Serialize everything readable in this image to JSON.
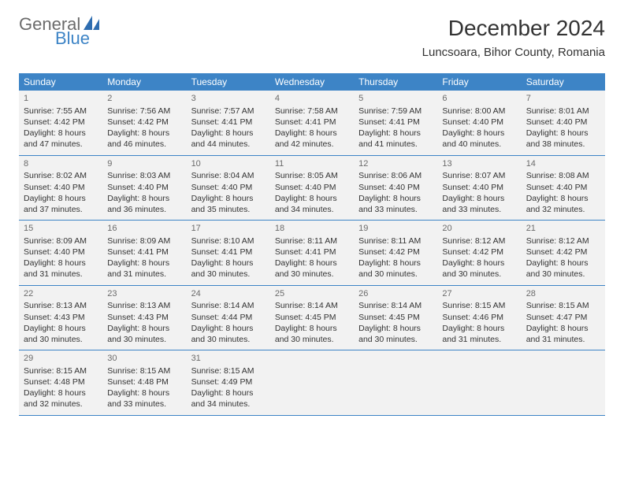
{
  "logo": {
    "text1": "General",
    "text2": "Blue",
    "icon_color": "#2e6db0"
  },
  "title": "December 2024",
  "location": "Luncsoara, Bihor County, Romania",
  "header_bg": "#3d84c6",
  "days": [
    "Sunday",
    "Monday",
    "Tuesday",
    "Wednesday",
    "Thursday",
    "Friday",
    "Saturday"
  ],
  "cells": [
    [
      {
        "n": "1",
        "sr": "Sunrise: 7:55 AM",
        "ss": "Sunset: 4:42 PM",
        "d1": "Daylight: 8 hours",
        "d2": "and 47 minutes."
      },
      {
        "n": "2",
        "sr": "Sunrise: 7:56 AM",
        "ss": "Sunset: 4:42 PM",
        "d1": "Daylight: 8 hours",
        "d2": "and 46 minutes."
      },
      {
        "n": "3",
        "sr": "Sunrise: 7:57 AM",
        "ss": "Sunset: 4:41 PM",
        "d1": "Daylight: 8 hours",
        "d2": "and 44 minutes."
      },
      {
        "n": "4",
        "sr": "Sunrise: 7:58 AM",
        "ss": "Sunset: 4:41 PM",
        "d1": "Daylight: 8 hours",
        "d2": "and 42 minutes."
      },
      {
        "n": "5",
        "sr": "Sunrise: 7:59 AM",
        "ss": "Sunset: 4:41 PM",
        "d1": "Daylight: 8 hours",
        "d2": "and 41 minutes."
      },
      {
        "n": "6",
        "sr": "Sunrise: 8:00 AM",
        "ss": "Sunset: 4:40 PM",
        "d1": "Daylight: 8 hours",
        "d2": "and 40 minutes."
      },
      {
        "n": "7",
        "sr": "Sunrise: 8:01 AM",
        "ss": "Sunset: 4:40 PM",
        "d1": "Daylight: 8 hours",
        "d2": "and 38 minutes."
      }
    ],
    [
      {
        "n": "8",
        "sr": "Sunrise: 8:02 AM",
        "ss": "Sunset: 4:40 PM",
        "d1": "Daylight: 8 hours",
        "d2": "and 37 minutes."
      },
      {
        "n": "9",
        "sr": "Sunrise: 8:03 AM",
        "ss": "Sunset: 4:40 PM",
        "d1": "Daylight: 8 hours",
        "d2": "and 36 minutes."
      },
      {
        "n": "10",
        "sr": "Sunrise: 8:04 AM",
        "ss": "Sunset: 4:40 PM",
        "d1": "Daylight: 8 hours",
        "d2": "and 35 minutes."
      },
      {
        "n": "11",
        "sr": "Sunrise: 8:05 AM",
        "ss": "Sunset: 4:40 PM",
        "d1": "Daylight: 8 hours",
        "d2": "and 34 minutes."
      },
      {
        "n": "12",
        "sr": "Sunrise: 8:06 AM",
        "ss": "Sunset: 4:40 PM",
        "d1": "Daylight: 8 hours",
        "d2": "and 33 minutes."
      },
      {
        "n": "13",
        "sr": "Sunrise: 8:07 AM",
        "ss": "Sunset: 4:40 PM",
        "d1": "Daylight: 8 hours",
        "d2": "and 33 minutes."
      },
      {
        "n": "14",
        "sr": "Sunrise: 8:08 AM",
        "ss": "Sunset: 4:40 PM",
        "d1": "Daylight: 8 hours",
        "d2": "and 32 minutes."
      }
    ],
    [
      {
        "n": "15",
        "sr": "Sunrise: 8:09 AM",
        "ss": "Sunset: 4:40 PM",
        "d1": "Daylight: 8 hours",
        "d2": "and 31 minutes."
      },
      {
        "n": "16",
        "sr": "Sunrise: 8:09 AM",
        "ss": "Sunset: 4:41 PM",
        "d1": "Daylight: 8 hours",
        "d2": "and 31 minutes."
      },
      {
        "n": "17",
        "sr": "Sunrise: 8:10 AM",
        "ss": "Sunset: 4:41 PM",
        "d1": "Daylight: 8 hours",
        "d2": "and 30 minutes."
      },
      {
        "n": "18",
        "sr": "Sunrise: 8:11 AM",
        "ss": "Sunset: 4:41 PM",
        "d1": "Daylight: 8 hours",
        "d2": "and 30 minutes."
      },
      {
        "n": "19",
        "sr": "Sunrise: 8:11 AM",
        "ss": "Sunset: 4:42 PM",
        "d1": "Daylight: 8 hours",
        "d2": "and 30 minutes."
      },
      {
        "n": "20",
        "sr": "Sunrise: 8:12 AM",
        "ss": "Sunset: 4:42 PM",
        "d1": "Daylight: 8 hours",
        "d2": "and 30 minutes."
      },
      {
        "n": "21",
        "sr": "Sunrise: 8:12 AM",
        "ss": "Sunset: 4:42 PM",
        "d1": "Daylight: 8 hours",
        "d2": "and 30 minutes."
      }
    ],
    [
      {
        "n": "22",
        "sr": "Sunrise: 8:13 AM",
        "ss": "Sunset: 4:43 PM",
        "d1": "Daylight: 8 hours",
        "d2": "and 30 minutes."
      },
      {
        "n": "23",
        "sr": "Sunrise: 8:13 AM",
        "ss": "Sunset: 4:43 PM",
        "d1": "Daylight: 8 hours",
        "d2": "and 30 minutes."
      },
      {
        "n": "24",
        "sr": "Sunrise: 8:14 AM",
        "ss": "Sunset: 4:44 PM",
        "d1": "Daylight: 8 hours",
        "d2": "and 30 minutes."
      },
      {
        "n": "25",
        "sr": "Sunrise: 8:14 AM",
        "ss": "Sunset: 4:45 PM",
        "d1": "Daylight: 8 hours",
        "d2": "and 30 minutes."
      },
      {
        "n": "26",
        "sr": "Sunrise: 8:14 AM",
        "ss": "Sunset: 4:45 PM",
        "d1": "Daylight: 8 hours",
        "d2": "and 30 minutes."
      },
      {
        "n": "27",
        "sr": "Sunrise: 8:15 AM",
        "ss": "Sunset: 4:46 PM",
        "d1": "Daylight: 8 hours",
        "d2": "and 31 minutes."
      },
      {
        "n": "28",
        "sr": "Sunrise: 8:15 AM",
        "ss": "Sunset: 4:47 PM",
        "d1": "Daylight: 8 hours",
        "d2": "and 31 minutes."
      }
    ],
    [
      {
        "n": "29",
        "sr": "Sunrise: 8:15 AM",
        "ss": "Sunset: 4:48 PM",
        "d1": "Daylight: 8 hours",
        "d2": "and 32 minutes."
      },
      {
        "n": "30",
        "sr": "Sunrise: 8:15 AM",
        "ss": "Sunset: 4:48 PM",
        "d1": "Daylight: 8 hours",
        "d2": "and 33 minutes."
      },
      {
        "n": "31",
        "sr": "Sunrise: 8:15 AM",
        "ss": "Sunset: 4:49 PM",
        "d1": "Daylight: 8 hours",
        "d2": "and 34 minutes."
      },
      {
        "empty": true
      },
      {
        "empty": true
      },
      {
        "empty": true
      },
      {
        "empty": true
      }
    ]
  ]
}
